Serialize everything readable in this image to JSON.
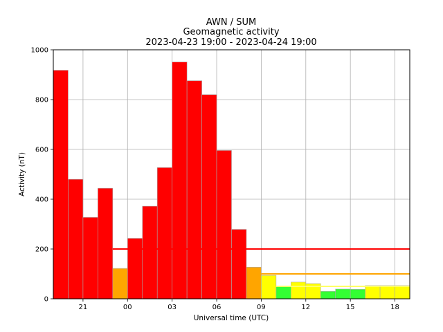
{
  "chart_data": {
    "type": "bar",
    "title": [
      "AWN / SUM",
      "Geomagnetic activity",
      "2023-04-23 19:00 - 2023-04-24 19:00"
    ],
    "xlabel": "Universal time (UTC)",
    "ylabel": "Activity (nT)",
    "ylim": [
      0,
      1000
    ],
    "yticks": [
      0,
      200,
      400,
      600,
      800,
      1000
    ],
    "xlim": [
      19,
      43
    ],
    "xticks": [
      {
        "x": 21,
        "label": "21"
      },
      {
        "x": 24,
        "label": "00"
      },
      {
        "x": 27,
        "label": "03"
      },
      {
        "x": 30,
        "label": "06"
      },
      {
        "x": 33,
        "label": "09"
      },
      {
        "x": 36,
        "label": "12"
      },
      {
        "x": 39,
        "label": "15"
      },
      {
        "x": 42,
        "label": "18"
      }
    ],
    "grid": true,
    "bar_hours": [
      19,
      20,
      21,
      22,
      23,
      24,
      25,
      26,
      27,
      28,
      29,
      30,
      31,
      32,
      33,
      34,
      35,
      36,
      37,
      38,
      39,
      40,
      41,
      42
    ],
    "values": [
      918,
      480,
      327,
      444,
      122,
      243,
      372,
      527,
      951,
      876,
      820,
      596,
      279,
      127,
      94,
      48,
      67,
      61,
      30,
      39,
      38,
      53,
      53,
      53
    ],
    "bar_colors": [
      "#ff0000",
      "#ff0000",
      "#ff0000",
      "#ff0000",
      "#ffa500",
      "#ff0000",
      "#ff0000",
      "#ff0000",
      "#ff0000",
      "#ff0000",
      "#ff0000",
      "#ff0000",
      "#ff0000",
      "#ffa500",
      "#ffff00",
      "#33ff33",
      "#ffff00",
      "#ffff00",
      "#33ff33",
      "#33ff33",
      "#33ff33",
      "#ffff00",
      "#ffff00",
      "#ffff00"
    ],
    "thresholds": [
      {
        "y": 200,
        "x_from": 23,
        "x_to": 43,
        "color": "#ff0000"
      },
      {
        "y": 100,
        "x_from": 33,
        "x_to": 43,
        "color": "#ffa500"
      },
      {
        "y": 50,
        "x_from": 34,
        "x_to": 43,
        "color": "#ffff66"
      }
    ]
  }
}
